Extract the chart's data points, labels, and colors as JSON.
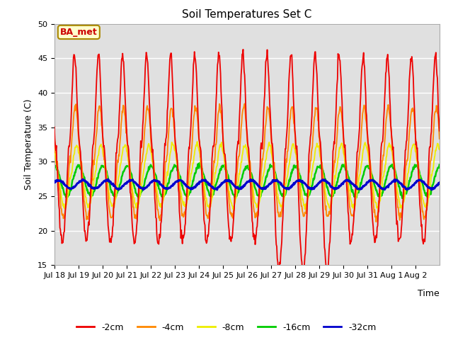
{
  "title": "Soil Temperatures Set C",
  "xlabel": "Time",
  "ylabel": "Soil Temperature (C)",
  "ylim": [
    15,
    50
  ],
  "yticks": [
    15,
    20,
    25,
    30,
    35,
    40,
    45,
    50
  ],
  "annotation": "BA_met",
  "bg_color": "#e0e0e0",
  "fig_bg": "#ffffff",
  "colors": {
    "2cm": "#ee0000",
    "4cm": "#ff8800",
    "8cm": "#eeee00",
    "16cm": "#00cc00",
    "32cm": "#0000cc"
  },
  "lw": {
    "2cm": 1.3,
    "4cm": 1.3,
    "8cm": 1.3,
    "16cm": 1.8,
    "32cm": 2.2
  },
  "xtick_labels": [
    "Jul 18",
    "Jul 19",
    "Jul 20",
    "Jul 21",
    "Jul 22",
    "Jul 23",
    "Jul 24",
    "Jul 25",
    "Jul 26",
    "Jul 27",
    "Jul 28",
    "Jul 29",
    "Jul 30",
    "Jul 31",
    "Aug 1",
    "Aug 2"
  ],
  "n_days": 16,
  "ppd": 48,
  "legend_labels": [
    "-2cm",
    "-4cm",
    "-8cm",
    "-16cm",
    "-32cm"
  ]
}
